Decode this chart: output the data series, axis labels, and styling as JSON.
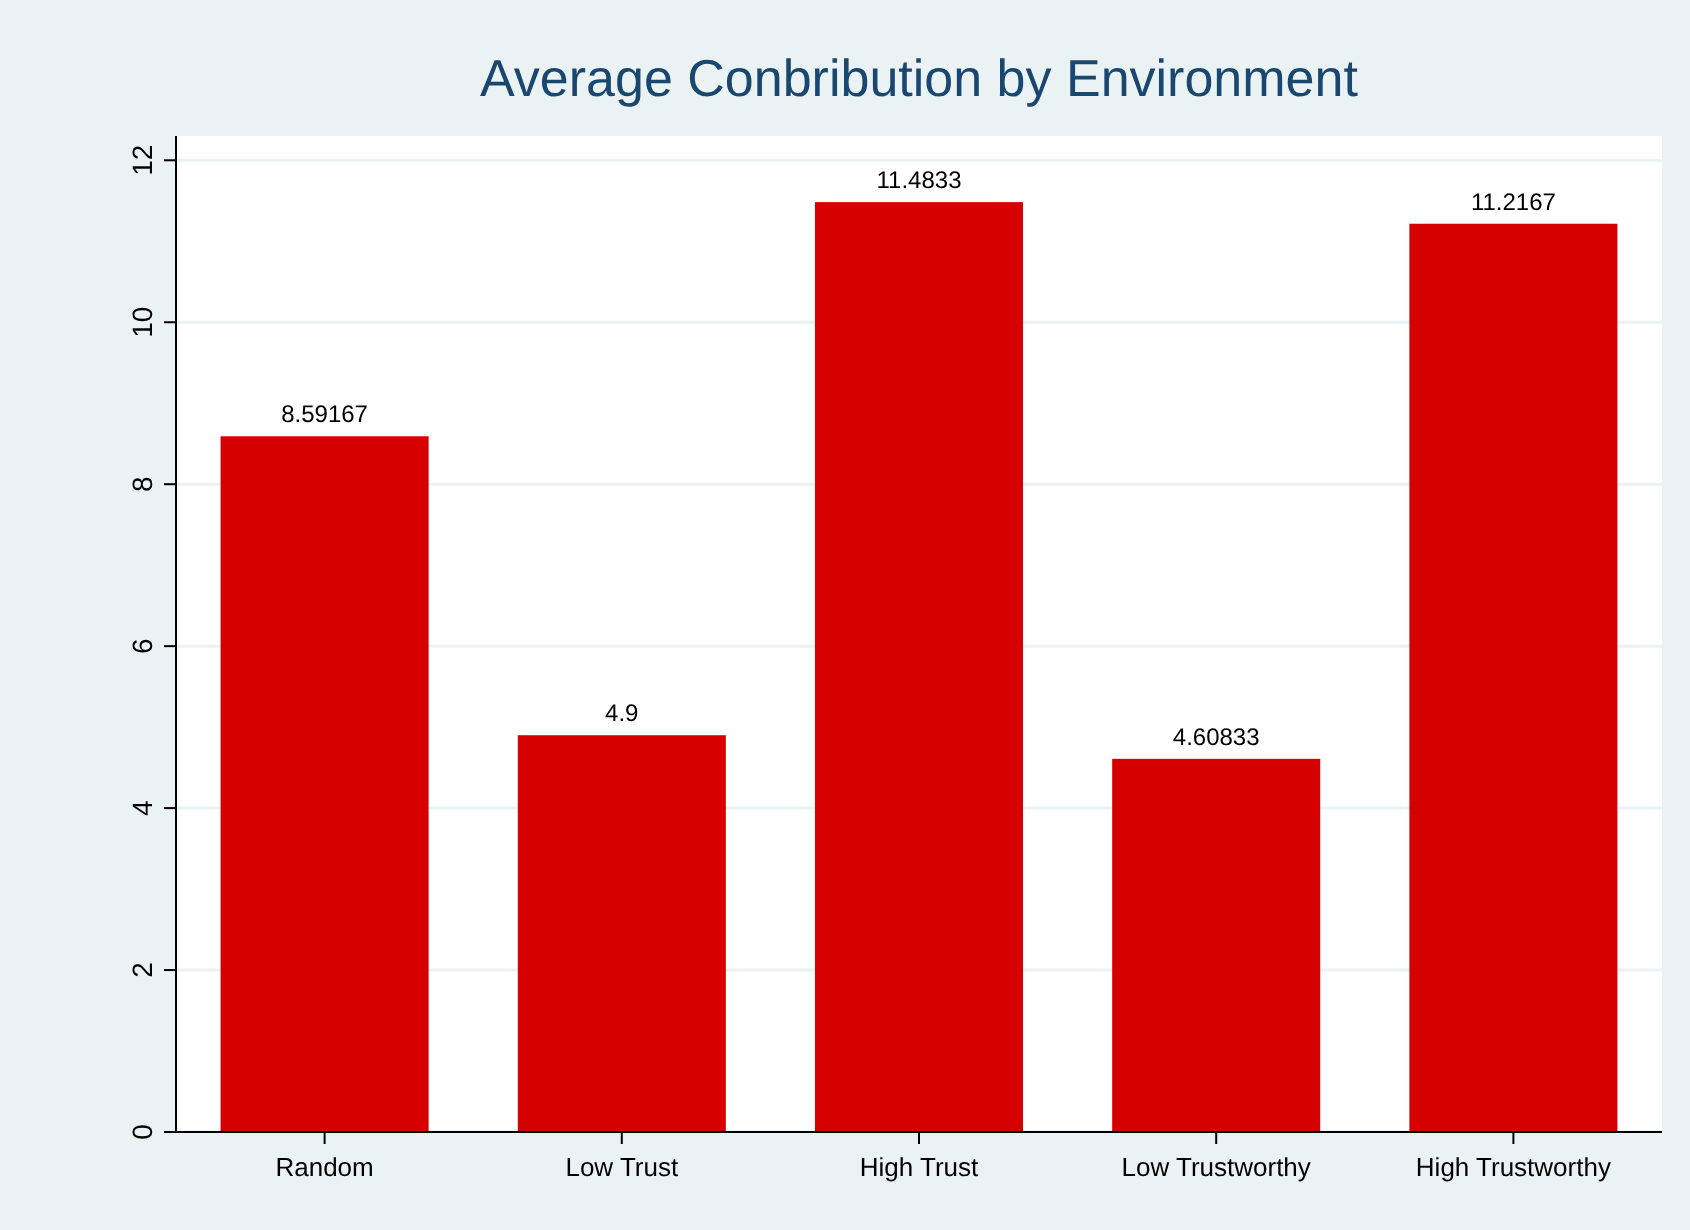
{
  "chart_data": {
    "type": "bar",
    "title": "Average Conbribution by Environment",
    "categories": [
      "Random",
      "Low Trust",
      "High Trust",
      "Low Trustworthy",
      "High Trustworthy"
    ],
    "values": [
      8.59167,
      4.9,
      11.4833,
      4.60833,
      11.2167
    ],
    "color": "#d60000",
    "ylim": [
      0,
      12.3
    ],
    "yticks": [
      0,
      2,
      4,
      6,
      8,
      10,
      12
    ],
    "grid": "y",
    "data_labels": true
  }
}
